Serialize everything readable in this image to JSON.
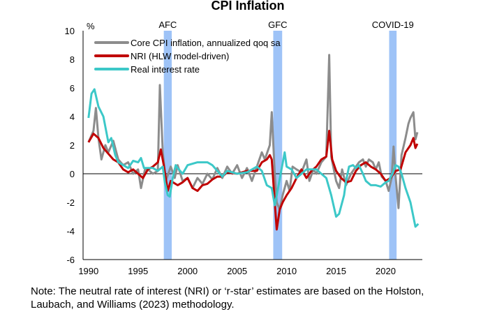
{
  "chart_data": {
    "type": "line",
    "title": "CPI Inflation",
    "ylabel": "%",
    "xlim": [
      1989.45,
      2023.7
    ],
    "ylim": [
      -6,
      10
    ],
    "xticks": [
      1990,
      1995,
      2000,
      2005,
      2010,
      2015,
      2020
    ],
    "yticks": [
      -6,
      -4,
      -2,
      0,
      2,
      4,
      6,
      8,
      10
    ],
    "grid": false,
    "legend_placement": "top-left",
    "zero_line": true,
    "shaded_periods": [
      {
        "label": "AFC",
        "start": 1997.6,
        "end": 1998.4,
        "color": "#9ec3f7"
      },
      {
        "label": "GFC",
        "start": 2008.65,
        "end": 2009.55,
        "color": "#9ec3f7"
      },
      {
        "label": "COVID-19",
        "start": 2020.35,
        "end": 2021.1,
        "color": "#9ec3f7"
      }
    ],
    "series": [
      {
        "name": "Core CPI inflation, annualized qoq sa",
        "color": "#8c8c8c",
        "x": [
          1990,
          1990.5,
          1990.75,
          1991,
          1991.3,
          1991.7,
          1992,
          1992.5,
          1993,
          1993.5,
          1994,
          1994.5,
          1995,
          1995.3,
          1995.7,
          1996,
          1996.5,
          1997,
          1997.2,
          1997.5,
          1997.8,
          1998.3,
          1998.7,
          1999,
          1999.5,
          2000,
          2000.5,
          2001,
          2001.5,
          2002,
          2002.5,
          2003,
          2003.5,
          2004,
          2004.5,
          2005,
          2005.5,
          2006,
          2006.5,
          2007,
          2007.5,
          2007.8,
          2008.3,
          2008.5,
          2008.8,
          2009,
          2009.3,
          2009.6,
          2010,
          2010.3,
          2010.6,
          2011,
          2011.5,
          2012,
          2012.3,
          2012.7,
          2013,
          2013.5,
          2014,
          2014.3,
          2014.5,
          2015,
          2015.3,
          2015.6,
          2016,
          2016.5,
          2017,
          2017.3,
          2017.7,
          2018,
          2018.3,
          2018.7,
          2019,
          2019.3,
          2019.6,
          2020,
          2020.3,
          2020.6,
          2020.8,
          2021,
          2021.3,
          2021.6,
          2022,
          2022.3,
          2022.5,
          2022.8,
          2023,
          2023.2
        ],
        "y": [
          2.2,
          3.0,
          4.6,
          2.5,
          1.0,
          2.0,
          1.5,
          2.3,
          1.0,
          0.6,
          0.8,
          0.0,
          0.3,
          -1.0,
          0.3,
          0.3,
          0.0,
          0.2,
          6.2,
          1.5,
          -0.5,
          0.5,
          -0.3,
          0.6,
          -0.5,
          -0.3,
          -1.0,
          -0.3,
          -0.7,
          0.0,
          -0.4,
          0.4,
          -0.3,
          0.5,
          0.0,
          0.6,
          -0.3,
          0.4,
          -0.5,
          0.5,
          1.5,
          1.0,
          2.0,
          4.3,
          0.0,
          -2.0,
          -2.5,
          -1.5,
          -0.5,
          -1.2,
          0.5,
          0.3,
          0.1,
          1.0,
          -0.5,
          0.3,
          0.0,
          0.8,
          1.2,
          8.3,
          1.2,
          -0.5,
          -1.0,
          0.3,
          -0.8,
          0.0,
          0.5,
          0.8,
          1.0,
          0.5,
          1.0,
          0.8,
          0.3,
          0.8,
          -0.2,
          -0.5,
          -1.2,
          -0.3,
          1.9,
          -0.2,
          -2.4,
          1.3,
          2.5,
          3.5,
          3.9,
          4.3,
          2.4,
          2.9
        ]
      },
      {
        "name": "NRI (HLW model-driven)",
        "color": "#c00000",
        "x": [
          1990,
          1990.5,
          1991,
          1991.5,
          1992,
          1992.5,
          1993,
          1993.5,
          1994,
          1994.5,
          1995,
          1995.5,
          1996,
          1996.5,
          1997,
          1997.3,
          1997.6,
          1998,
          1998.3,
          1999,
          1999.5,
          2000,
          2000.5,
          2001,
          2001.5,
          2002,
          2002.5,
          2003,
          2003.5,
          2004,
          2005,
          2006,
          2007,
          2007.5,
          2008,
          2008.3,
          2008.5,
          2008.8,
          2009,
          2009.3,
          2009.6,
          2010,
          2010.5,
          2011,
          2011.5,
          2012,
          2012.5,
          2013,
          2013.5,
          2014,
          2014.3,
          2014.6,
          2015,
          2015.5,
          2016,
          2016.5,
          2017,
          2017.5,
          2018,
          2018.5,
          2019,
          2019.5,
          2020,
          2020.5,
          2021,
          2021.5,
          2022,
          2022.5,
          2022.8,
          2023,
          2023.2
        ],
        "y": [
          2.2,
          2.8,
          2.5,
          1.8,
          1.4,
          1.0,
          0.8,
          0.3,
          0.1,
          0.3,
          0.0,
          -0.3,
          0.3,
          0.5,
          0.8,
          1.7,
          0.6,
          -1.2,
          -0.5,
          -0.8,
          -0.6,
          -0.3,
          -1.0,
          -1.2,
          -0.8,
          -0.7,
          -0.4,
          -0.2,
          -0.2,
          0.1,
          0.0,
          0.2,
          0.2,
          0.8,
          1.0,
          1.3,
          1.0,
          -2.0,
          -3.9,
          -2.5,
          -2.0,
          -1.5,
          -1.0,
          -0.3,
          0.3,
          -0.3,
          0.2,
          0.5,
          1.0,
          1.2,
          3.0,
          1.0,
          0.2,
          -0.3,
          -0.6,
          -0.5,
          0.2,
          0.6,
          0.8,
          0.5,
          0.3,
          0.0,
          -0.5,
          -0.3,
          0.2,
          0.3,
          1.5,
          2.0,
          2.5,
          1.8,
          2.1
        ]
      },
      {
        "name": "Real interest rate",
        "color": "#3cc8c8",
        "x": [
          1990,
          1990.3,
          1990.6,
          1991,
          1991.5,
          1992,
          1992.3,
          1992.7,
          1993,
          1993.5,
          1994,
          1994.5,
          1995,
          1995.3,
          1995.6,
          1996,
          1996.5,
          1997,
          1997.5,
          1997.7,
          1998,
          1998.2,
          1998.5,
          1998.8,
          1999,
          1999.5,
          2000,
          2001,
          2002,
          2002.5,
          2003,
          2003.5,
          2004,
          2005,
          2006,
          2007,
          2007.5,
          2008,
          2008.5,
          2008.8,
          2009,
          2009.4,
          2009.8,
          2010,
          2010.5,
          2011,
          2011.5,
          2012,
          2013,
          2013.5,
          2014,
          2014.5,
          2015,
          2015.3,
          2015.8,
          2016,
          2016.3,
          2016.7,
          2017,
          2017.3,
          2017.7,
          2018,
          2018.5,
          2019,
          2019.5,
          2020,
          2020.3,
          2020.7,
          2021,
          2021.3,
          2021.6,
          2022,
          2022.5,
          2023,
          2023.3
        ],
        "y": [
          3.9,
          5.6,
          5.9,
          4.7,
          4.0,
          2.2,
          2.5,
          1.3,
          0.8,
          0.6,
          0.4,
          0.9,
          0.8,
          1.1,
          0.4,
          0.4,
          0.4,
          0.2,
          0.5,
          -0.6,
          -1.5,
          -1.6,
          -0.3,
          0.6,
          0.4,
          0.0,
          0.6,
          0.8,
          0.8,
          0.6,
          0.2,
          -0.2,
          0.2,
          0.0,
          0.1,
          0.5,
          0.2,
          -0.8,
          -1.0,
          -2.2,
          -1.5,
          0.0,
          1.5,
          0.5,
          0.3,
          -0.3,
          0.0,
          0.3,
          0.3,
          0.0,
          -0.3,
          -1.5,
          -3.0,
          -2.8,
          -1.5,
          -0.5,
          0.5,
          0.6,
          0.4,
          0.6,
          0.0,
          -0.5,
          -0.8,
          -0.8,
          -0.9,
          -0.6,
          -0.5,
          0.0,
          0.6,
          0.5,
          0.0,
          -1.0,
          -2.0,
          -3.7,
          -3.5
        ]
      }
    ]
  },
  "note": {
    "line1": "Note: The neutral rate of interest (NRI) or ‘r-star’ estimates are based on the Holston,",
    "line2": "Laubach, and Williams (2023) methodology."
  }
}
